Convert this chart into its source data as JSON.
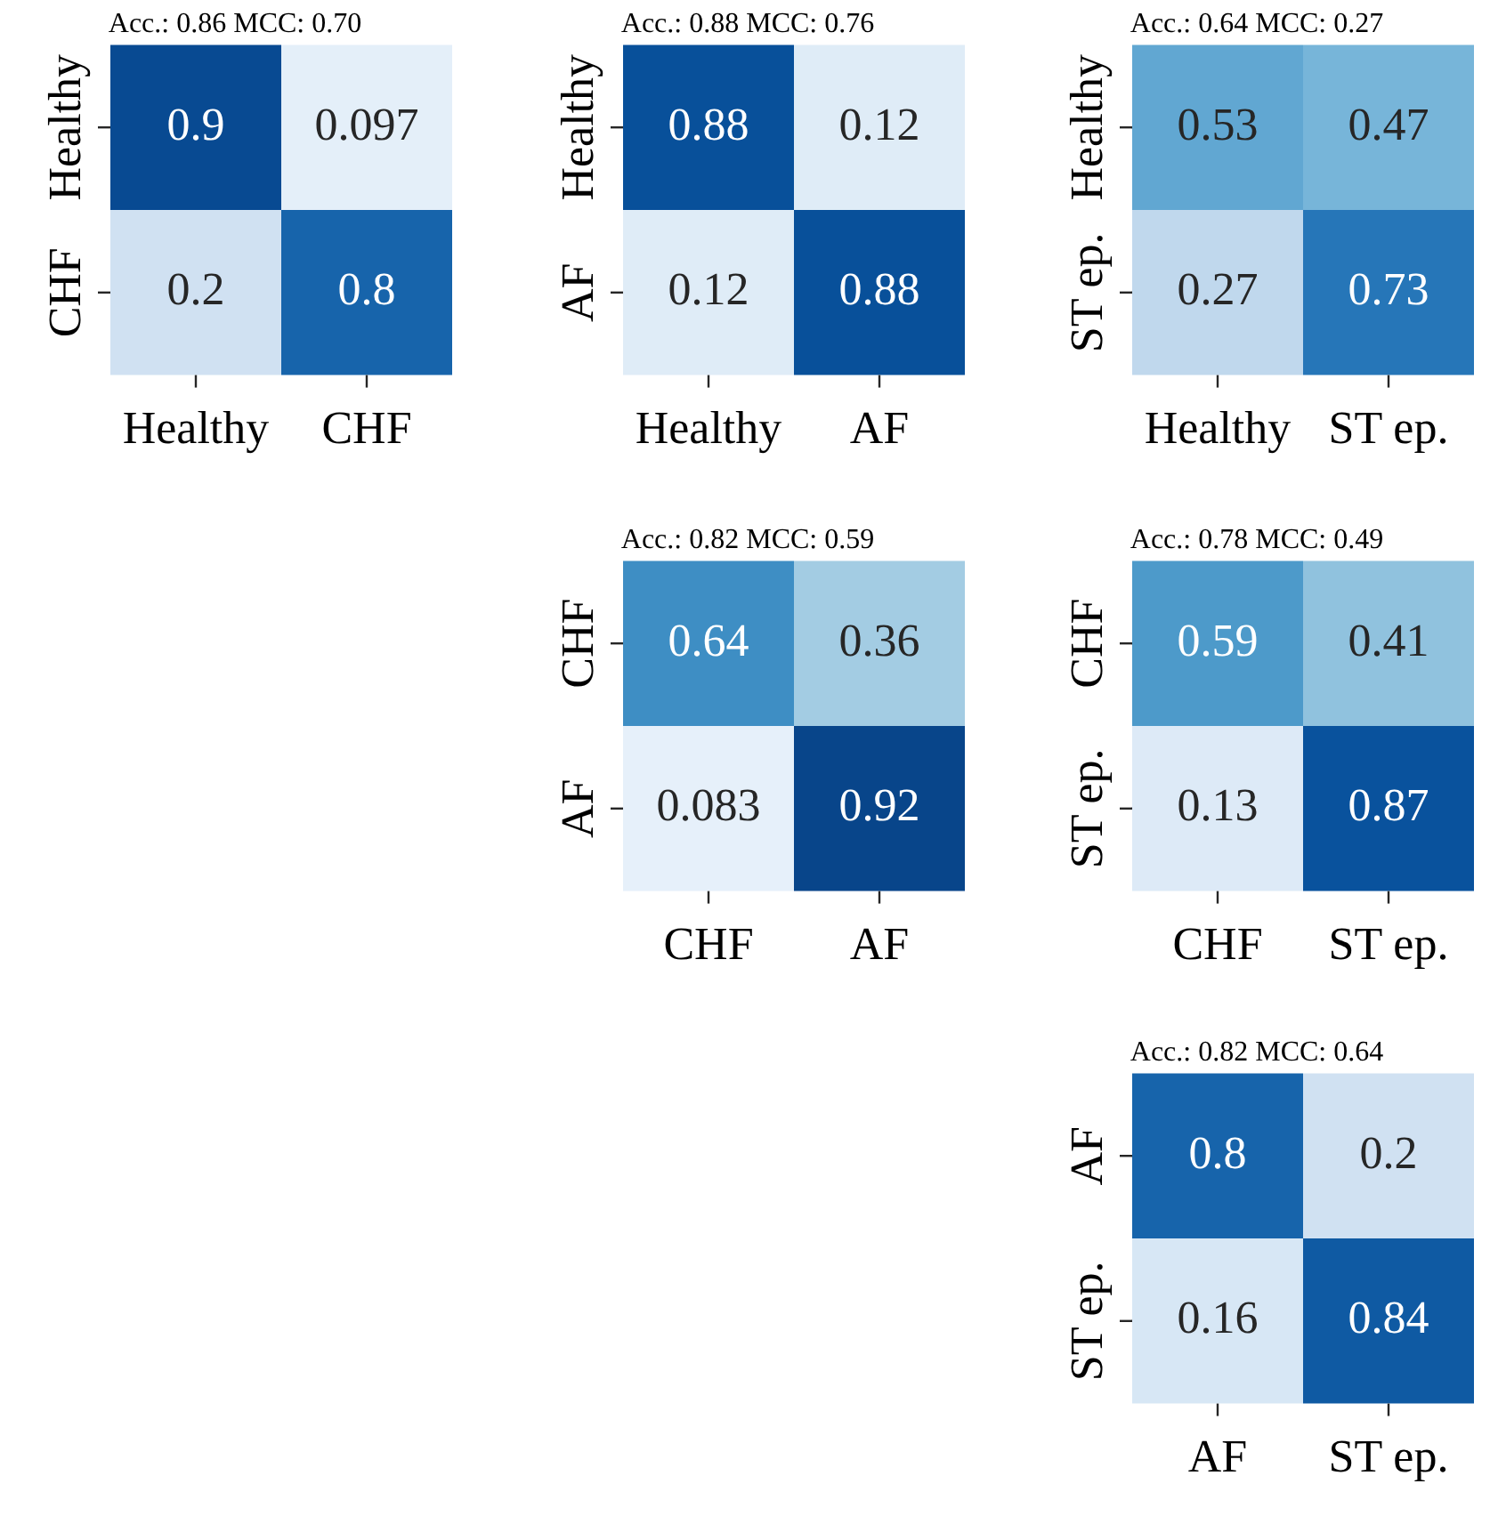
{
  "chart_data": [
    {
      "type": "heatmap",
      "title": "Acc.: 0.86 MCC: 0.70",
      "categories": [
        "Healthy",
        "CHF"
      ],
      "y_categories": [
        "Healthy",
        "CHF"
      ],
      "cells": [
        [
          0.9,
          0.097
        ],
        [
          0.2,
          0.8
        ]
      ],
      "data_labels": true
    },
    {
      "type": "heatmap",
      "title": "Acc.: 0.88 MCC: 0.76",
      "categories": [
        "Healthy",
        "AF"
      ],
      "y_categories": [
        "Healthy",
        "AF"
      ],
      "cells": [
        [
          0.88,
          0.12
        ],
        [
          0.12,
          0.88
        ]
      ],
      "data_labels": true
    },
    {
      "type": "heatmap",
      "title": "Acc.: 0.64 MCC: 0.27",
      "categories": [
        "Healthy",
        "ST ep."
      ],
      "y_categories": [
        "Healthy",
        "ST ep."
      ],
      "cells": [
        [
          0.53,
          0.47
        ],
        [
          0.27,
          0.73
        ]
      ],
      "data_labels": true
    },
    {
      "type": "heatmap",
      "title": "Acc.: 0.82 MCC: 0.59",
      "categories": [
        "CHF",
        "AF"
      ],
      "y_categories": [
        "CHF",
        "AF"
      ],
      "cells": [
        [
          0.64,
          0.36
        ],
        [
          0.083,
          0.92
        ]
      ],
      "data_labels": true
    },
    {
      "type": "heatmap",
      "title": "Acc.: 0.78 MCC: 0.49",
      "categories": [
        "CHF",
        "ST ep."
      ],
      "y_categories": [
        "CHF",
        "ST ep."
      ],
      "cells": [
        [
          0.59,
          0.41
        ],
        [
          0.13,
          0.87
        ]
      ],
      "data_labels": true
    },
    {
      "type": "heatmap",
      "title": "Acc.: 0.82 MCC: 0.64",
      "categories": [
        "AF",
        "ST ep."
      ],
      "y_categories": [
        "AF",
        "ST ep."
      ],
      "cells": [
        [
          0.8,
          0.2
        ],
        [
          0.16,
          0.84
        ]
      ],
      "data_labels": true
    }
  ]
}
